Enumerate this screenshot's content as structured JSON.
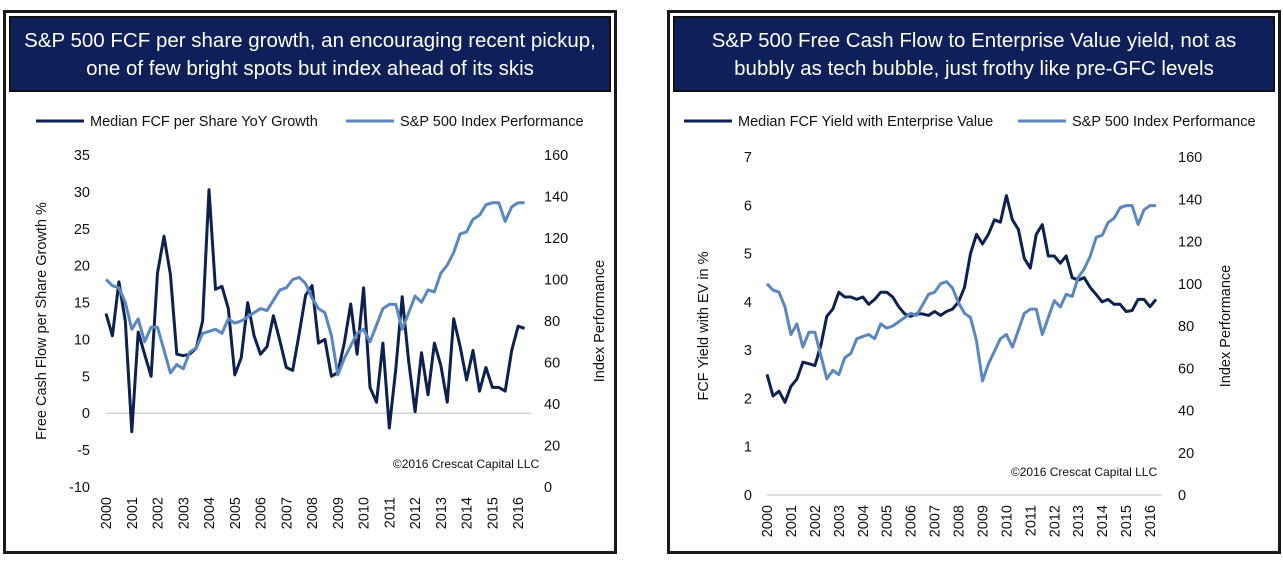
{
  "chart_data": [
    {
      "type": "line",
      "title_lines": [
        "S&P 500 FCF per share growth, an encouraging recent pickup,",
        "one of few bright spots but index ahead of its skis"
      ],
      "ylabel": "Free Cash Flow per Share Growth %",
      "y2label": "Index Performance",
      "ylim": [
        -10,
        35
      ],
      "y2lim": [
        0,
        160
      ],
      "yticks": [
        "35",
        "30",
        "25",
        "20",
        "15",
        "10",
        "5",
        "0",
        "-5",
        "-10"
      ],
      "y2ticks": [
        "160",
        "140",
        "120",
        "100",
        "80",
        "60",
        "40",
        "20",
        "0"
      ],
      "x_ticks": [
        "2000",
        "2001",
        "2002",
        "2003",
        "2004",
        "2005",
        "2006",
        "2007",
        "2008",
        "2009",
        "2010",
        "2011",
        "2012",
        "2013",
        "2014",
        "2015",
        "2016"
      ],
      "xlim": [
        2000,
        2016.5
      ],
      "annotation": "©2016 Crescat Capital LLC",
      "legend_position": "top",
      "series": [
        {
          "name": "Median FCF per Share YoY Growth",
          "axis": "left",
          "color": "#0e2050",
          "x": [
            2000.0,
            2000.25,
            2000.5,
            2000.75,
            2001.0,
            2001.25,
            2001.5,
            2001.75,
            2002.0,
            2002.25,
            2002.5,
            2002.75,
            2003.0,
            2003.25,
            2003.5,
            2003.75,
            2004.0,
            2004.25,
            2004.5,
            2004.75,
            2005.0,
            2005.25,
            2005.5,
            2005.75,
            2006.0,
            2006.25,
            2006.5,
            2006.75,
            2007.0,
            2007.25,
            2007.5,
            2007.75,
            2008.0,
            2008.25,
            2008.5,
            2008.75,
            2009.0,
            2009.25,
            2009.5,
            2009.75,
            2010.0,
            2010.25,
            2010.5,
            2010.75,
            2011.0,
            2011.25,
            2011.5,
            2011.75,
            2012.0,
            2012.25,
            2012.5,
            2012.75,
            2013.0,
            2013.25,
            2013.5,
            2013.75,
            2014.0,
            2014.25,
            2014.5,
            2014.75,
            2015.0,
            2015.25,
            2015.5,
            2015.75,
            2016.0,
            2016.25
          ],
          "values": [
            13.5,
            10.5,
            17.8,
            12.5,
            -2.5,
            11,
            8,
            5,
            19,
            24,
            18.8,
            8,
            7.8,
            8,
            8.8,
            12.5,
            30.3,
            16.8,
            17.2,
            14.2,
            5.2,
            7.5,
            15,
            10.5,
            8,
            9,
            13.2,
            9.8,
            6.2,
            5.8,
            10.8,
            16,
            17.3,
            9.5,
            10,
            5,
            5.5,
            9.5,
            14.8,
            8,
            17,
            3.5,
            1.5,
            9.5,
            -2,
            6,
            15.8,
            7,
            0.2,
            8.2,
            2.5,
            9.5,
            6.5,
            1.5,
            12.8,
            9,
            4.5,
            8.5,
            3,
            6.2,
            3.5,
            3.5,
            3,
            8.5,
            11.8,
            11.5
          ]
        },
        {
          "name": "S&P 500 Index Performance",
          "axis": "right",
          "color": "#5b87c0",
          "x": [
            2000.0,
            2000.25,
            2000.5,
            2000.75,
            2001.0,
            2001.25,
            2001.5,
            2001.75,
            2002.0,
            2002.25,
            2002.5,
            2002.75,
            2003.0,
            2003.25,
            2003.5,
            2003.75,
            2004.0,
            2004.25,
            2004.5,
            2004.75,
            2005.0,
            2005.25,
            2005.5,
            2005.75,
            2006.0,
            2006.25,
            2006.5,
            2006.75,
            2007.0,
            2007.25,
            2007.5,
            2007.75,
            2008.0,
            2008.25,
            2008.5,
            2008.75,
            2009.0,
            2009.25,
            2009.5,
            2009.75,
            2010.0,
            2010.25,
            2010.5,
            2010.75,
            2011.0,
            2011.25,
            2011.5,
            2011.75,
            2012.0,
            2012.25,
            2012.5,
            2012.75,
            2013.0,
            2013.25,
            2013.5,
            2013.75,
            2014.0,
            2014.25,
            2014.5,
            2014.75,
            2015.0,
            2015.25,
            2015.5,
            2015.75,
            2016.0,
            2016.25
          ],
          "values": [
            100,
            97,
            96,
            89,
            76,
            81,
            70,
            77,
            77,
            66,
            55,
            59,
            57,
            65,
            67,
            74,
            75,
            76,
            74,
            81,
            79,
            80,
            82,
            84,
            86,
            85,
            90,
            95,
            96,
            100,
            101,
            98,
            91,
            86,
            84,
            73,
            54,
            62,
            68,
            74,
            76,
            70,
            78,
            86,
            88,
            88,
            76,
            84,
            92,
            89,
            95,
            94,
            103,
            107,
            113,
            122,
            123,
            129,
            131,
            136,
            137,
            137,
            128,
            135,
            137,
            137
          ]
        }
      ]
    },
    {
      "type": "line",
      "title_lines": [
        "S&P 500 Free Cash Flow to Enterprise Value yield, not as",
        "bubbly as tech bubble, just frothy like pre-GFC levels"
      ],
      "ylabel": "FCF Yield with EV in %",
      "y2label": "Index Performance",
      "ylim": [
        0,
        7
      ],
      "y2lim": [
        0,
        160
      ],
      "yticks": [
        "7",
        "6",
        "5",
        "4",
        "3",
        "2",
        "1",
        "0"
      ],
      "y2ticks": [
        "160",
        "140",
        "120",
        "100",
        "80",
        "60",
        "40",
        "20",
        "0"
      ],
      "x_ticks": [
        "2000",
        "2001",
        "2002",
        "2003",
        "2004",
        "2005",
        "2006",
        "2007",
        "2008",
        "2009",
        "2010",
        "2011",
        "2012",
        "2013",
        "2014",
        "2015",
        "2016"
      ],
      "xlim": [
        2000,
        2016.5
      ],
      "annotation": "©2016 Crescat Capital LLC",
      "legend_position": "top",
      "series": [
        {
          "name": "Median FCF Yield with Enterprise Value",
          "axis": "left",
          "color": "#0e2050",
          "x": [
            2000.0,
            2000.25,
            2000.5,
            2000.75,
            2001.0,
            2001.25,
            2001.5,
            2001.75,
            2002.0,
            2002.25,
            2002.5,
            2002.75,
            2003.0,
            2003.25,
            2003.5,
            2003.75,
            2004.0,
            2004.25,
            2004.5,
            2004.75,
            2005.0,
            2005.25,
            2005.5,
            2005.75,
            2006.0,
            2006.25,
            2006.5,
            2006.75,
            2007.0,
            2007.25,
            2007.5,
            2007.75,
            2008.0,
            2008.25,
            2008.5,
            2008.75,
            2009.0,
            2009.25,
            2009.5,
            2009.75,
            2010.0,
            2010.25,
            2010.5,
            2010.75,
            2011.0,
            2011.25,
            2011.5,
            2011.75,
            2012.0,
            2012.25,
            2012.5,
            2012.75,
            2013.0,
            2013.25,
            2013.5,
            2013.75,
            2014.0,
            2014.25,
            2014.5,
            2014.75,
            2015.0,
            2015.25,
            2015.5,
            2015.75,
            2016.0,
            2016.25
          ],
          "values": [
            2.5,
            2.05,
            2.15,
            1.92,
            2.25,
            2.4,
            2.75,
            2.72,
            2.68,
            3.1,
            3.7,
            3.85,
            4.2,
            4.1,
            4.1,
            4.05,
            4.1,
            3.95,
            4.05,
            4.2,
            4.2,
            4.1,
            3.9,
            3.75,
            3.7,
            3.75,
            3.75,
            3.72,
            3.8,
            3.72,
            3.8,
            3.85,
            4,
            4.3,
            5,
            5.4,
            5.2,
            5.4,
            5.7,
            5.65,
            6.2,
            5.7,
            5.5,
            4.9,
            4.7,
            5.4,
            5.6,
            4.95,
            4.95,
            4.8,
            4.95,
            4.5,
            4.45,
            4.5,
            4.3,
            4.15,
            4,
            4.05,
            3.95,
            3.95,
            3.8,
            3.82,
            4.05,
            4.05,
            3.9,
            4.05
          ]
        },
        {
          "name": "S&P 500 Index Performance",
          "axis": "right",
          "color": "#5b87c0",
          "x": [
            2000.0,
            2000.25,
            2000.5,
            2000.75,
            2001.0,
            2001.25,
            2001.5,
            2001.75,
            2002.0,
            2002.25,
            2002.5,
            2002.75,
            2003.0,
            2003.25,
            2003.5,
            2003.75,
            2004.0,
            2004.25,
            2004.5,
            2004.75,
            2005.0,
            2005.25,
            2005.5,
            2005.75,
            2006.0,
            2006.25,
            2006.5,
            2006.75,
            2007.0,
            2007.25,
            2007.5,
            2007.75,
            2008.0,
            2008.25,
            2008.5,
            2008.75,
            2009.0,
            2009.25,
            2009.5,
            2009.75,
            2010.0,
            2010.25,
            2010.5,
            2010.75,
            2011.0,
            2011.25,
            2011.5,
            2011.75,
            2012.0,
            2012.25,
            2012.5,
            2012.75,
            2013.0,
            2013.25,
            2013.5,
            2013.75,
            2014.0,
            2014.25,
            2014.5,
            2014.75,
            2015.0,
            2015.25,
            2015.5,
            2015.75,
            2016.0,
            2016.25
          ],
          "values": [
            100,
            97,
            96,
            89,
            76,
            81,
            70,
            77,
            77,
            66,
            55,
            59,
            57,
            65,
            67,
            74,
            75,
            76,
            74,
            81,
            79,
            80,
            82,
            84,
            86,
            85,
            90,
            95,
            96,
            100,
            101,
            98,
            91,
            86,
            84,
            73,
            54,
            62,
            68,
            74,
            76,
            70,
            78,
            86,
            88,
            88,
            76,
            84,
            92,
            89,
            95,
            94,
            103,
            107,
            113,
            122,
            123,
            129,
            131,
            136,
            137,
            137,
            128,
            135,
            137,
            137
          ]
        }
      ]
    }
  ]
}
